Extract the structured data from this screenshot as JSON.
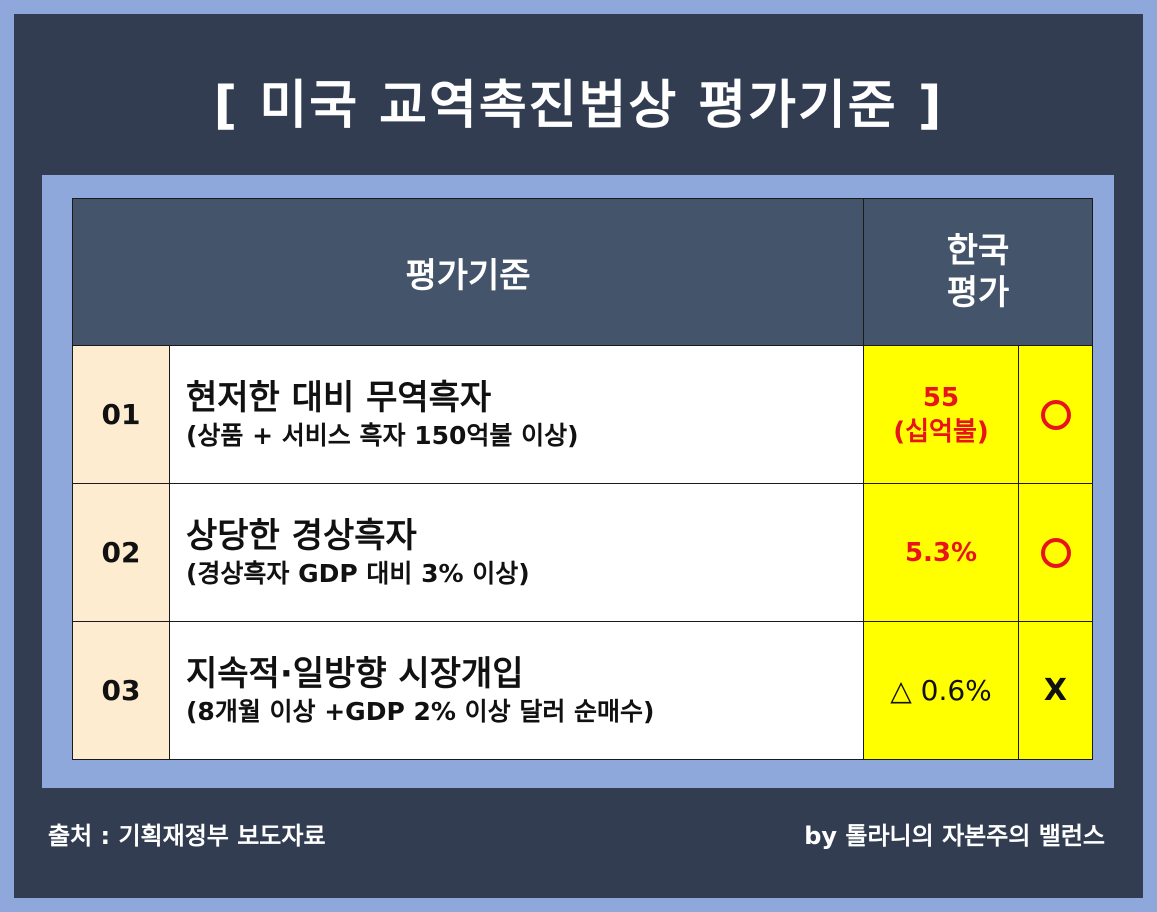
{
  "title": "[ 미국 교역촉진법상 평가기준 ]",
  "header": {
    "criteria": "평가기준",
    "korea_eval_line1": "한국",
    "korea_eval_line2": "평가"
  },
  "rows": [
    {
      "no": "01",
      "main": "현저한 대비 무역흑자",
      "sub": "(상품 + 서비스 흑자 150억불 이상)",
      "value_line1": "55",
      "value_line2": "(십억불)",
      "mark": "circle-icon"
    },
    {
      "no": "02",
      "main": "상당한 경상흑자",
      "sub": "(경상흑자 GDP 대비 3% 이상)",
      "value_line1": "5.3%",
      "mark": "circle-icon"
    },
    {
      "no": "03",
      "main": "지속적·일방향 시장개입",
      "sub": "(8개월 이상 +GDP 2% 이상 달러 순매수)",
      "value_line1": "△ 0.6%",
      "mark_text": "X"
    }
  ],
  "footer": {
    "source": "출처 : 기획재정부 보도자료",
    "byline": "by 톨라니의 자본주의 밸런스"
  },
  "colors": {
    "outer": "#8fa8dc",
    "frame": "#323d52",
    "header_bg": "#44546a",
    "number_bg": "#fdeccf",
    "highlight": "#ffff00",
    "accent_red": "#e8141b"
  }
}
